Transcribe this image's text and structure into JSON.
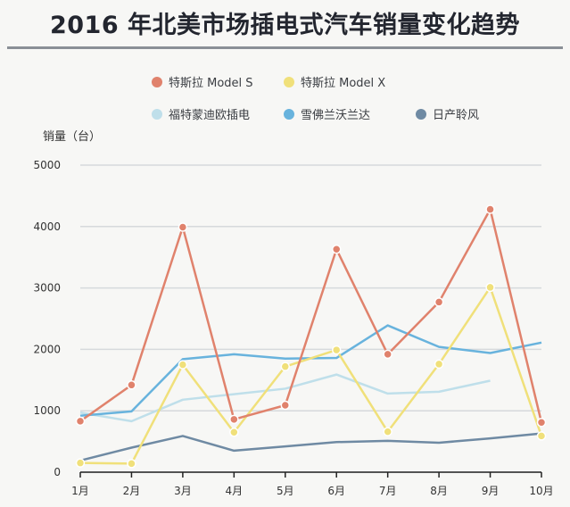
{
  "title": "2016 年北美市场插电式汽车销量变化趋势",
  "colors": {
    "model_s": "#e0826c",
    "model_x": "#f0e07a",
    "volt": "#bfdfea",
    "leaf_like": "#68b3dd",
    "nissan": "#6f8aa3",
    "grid": "#d6d9dc"
  },
  "chart_data": {
    "type": "line",
    "title": "2016 年北美市场插电式汽车销量变化趋势",
    "xlabel": "",
    "ylabel": "销量（台）",
    "ylim": [
      0,
      5000
    ],
    "yticks": [
      "0",
      "1000",
      "2000",
      "3000",
      "4000",
      "5000"
    ],
    "categories": [
      "1月",
      "2月",
      "3月",
      "4月",
      "5月",
      "6月",
      "7月",
      "8月",
      "9月",
      "10月"
    ],
    "legend_position": "top",
    "series": [
      {
        "name": "特斯拉 Model S",
        "color_key": "model_s",
        "values": [
          830,
          1420,
          3990,
          860,
          1090,
          3630,
          1920,
          2770,
          4280,
          810
        ],
        "markers": true
      },
      {
        "name": "特斯拉 Model X",
        "color_key": "model_x",
        "values": [
          150,
          140,
          1750,
          650,
          1720,
          1990,
          660,
          1760,
          3010,
          590
        ],
        "markers": true
      },
      {
        "name": "福特蒙迪欧插电",
        "color_key": "volt",
        "values": [
          970,
          830,
          1180,
          1270,
          1360,
          1590,
          1280,
          1310,
          1490,
          null
        ],
        "markers": false
      },
      {
        "name": "雪佛兰沃兰达",
        "color_key": "leaf_like",
        "values": [
          920,
          990,
          1840,
          1920,
          1850,
          1860,
          2390,
          2040,
          1940,
          2110
        ],
        "markers": false
      },
      {
        "name": "日产聆风",
        "color_key": "nissan",
        "values": [
          190,
          400,
          590,
          350,
          420,
          490,
          510,
          480,
          550,
          630
        ],
        "markers": false
      }
    ]
  }
}
